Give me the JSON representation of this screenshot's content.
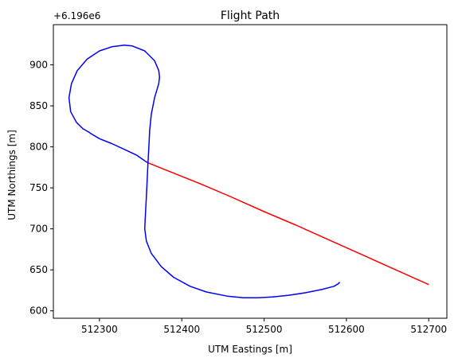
{
  "chart_data": {
    "type": "line",
    "title": "Flight Path",
    "xlabel": "UTM Eastings [m]",
    "ylabel": "UTM Northings [m]",
    "y_offset_label": "+6.196e6",
    "xlim": [
      512244,
      512722
    ],
    "ylim": [
      591,
      949
    ],
    "xticks": [
      512300,
      512400,
      512500,
      512600,
      512700
    ],
    "yticks": [
      600,
      650,
      700,
      750,
      800,
      850,
      900
    ],
    "grid": false,
    "series": [
      {
        "color": "#ff0000",
        "points": [
          [
            512700,
            632
          ],
          [
            512660,
            650
          ],
          [
            512620,
            668
          ],
          [
            512580,
            686
          ],
          [
            512540,
            704
          ],
          [
            512500,
            721
          ],
          [
            512460,
            739
          ],
          [
            512420,
            756
          ],
          [
            512380,
            772
          ],
          [
            512358,
            781
          ]
        ]
      },
      {
        "color": "#0000ff",
        "points": [
          [
            512592,
            635
          ],
          [
            512590,
            633
          ],
          [
            512585,
            630
          ],
          [
            512570,
            626
          ],
          [
            512550,
            622
          ],
          [
            512530,
            619
          ],
          [
            512510,
            617
          ],
          [
            512493,
            616
          ],
          [
            512475,
            616
          ],
          [
            512455,
            618
          ],
          [
            512430,
            623
          ],
          [
            512410,
            630
          ],
          [
            512390,
            641
          ],
          [
            512375,
            654
          ],
          [
            512363,
            670
          ],
          [
            512357,
            685
          ],
          [
            512355,
            700
          ],
          [
            512356,
            720
          ],
          [
            512357,
            740
          ],
          [
            512358,
            760
          ],
          [
            512359,
            781
          ],
          [
            512360,
            800
          ],
          [
            512361,
            820
          ],
          [
            512363,
            840
          ],
          [
            512367,
            860
          ],
          [
            512372,
            877
          ],
          [
            512373,
            885
          ],
          [
            512372,
            893
          ],
          [
            512367,
            905
          ],
          [
            512355,
            917
          ],
          [
            512340,
            923
          ],
          [
            512330,
            924
          ],
          [
            512315,
            922
          ],
          [
            512300,
            917
          ],
          [
            512285,
            907
          ],
          [
            512273,
            893
          ],
          [
            512266,
            877
          ],
          [
            512263,
            860
          ],
          [
            512265,
            843
          ],
          [
            512272,
            830
          ],
          [
            512280,
            822
          ],
          [
            512287,
            818
          ],
          [
            512290,
            816
          ],
          [
            512300,
            810
          ],
          [
            512315,
            804
          ],
          [
            512330,
            797
          ],
          [
            512345,
            790
          ],
          [
            512358,
            781
          ]
        ]
      }
    ]
  }
}
